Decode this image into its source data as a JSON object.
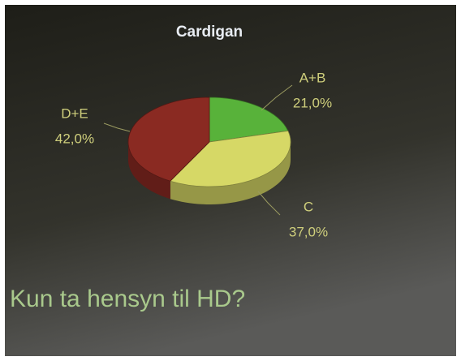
{
  "chart_data": {
    "type": "pie",
    "title": "Cardigan",
    "categories": [
      "A+B",
      "C",
      "D+E"
    ],
    "values": [
      21,
      37,
      42
    ],
    "value_labels": [
      "21,0%",
      "37,0%",
      "42,0%"
    ],
    "colors": [
      "#58b23a",
      "#d6d866",
      "#8a2a22"
    ],
    "annotation": "Kun ta hensyn til HD?"
  }
}
